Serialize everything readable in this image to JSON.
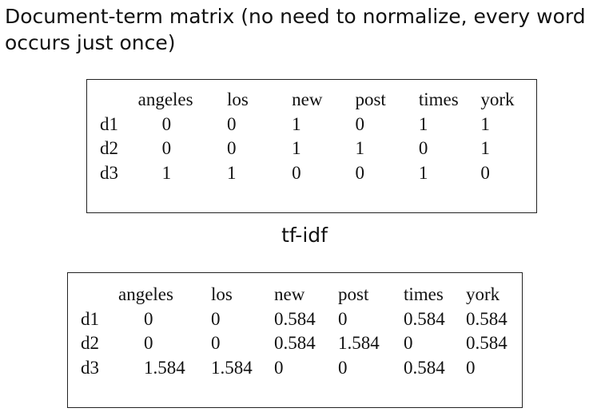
{
  "heading": "Document-term matrix (no need to normalize, every word occurs just once)",
  "tfidf_label": "tf-idf",
  "count_matrix": {
    "columns": [
      "angeles",
      "los",
      "new",
      "post",
      "times",
      "york"
    ],
    "rows": [
      {
        "doc": "d1",
        "values": [
          "0",
          "0",
          "1",
          "0",
          "1",
          "1"
        ]
      },
      {
        "doc": "d2",
        "values": [
          "0",
          "0",
          "1",
          "1",
          "0",
          "1"
        ]
      },
      {
        "doc": "d3",
        "values": [
          "1",
          "1",
          "0",
          "0",
          "1",
          "0"
        ]
      }
    ]
  },
  "tfidf_matrix": {
    "columns": [
      "angeles",
      "los",
      "new",
      "post",
      "times",
      "york"
    ],
    "rows": [
      {
        "doc": "d1",
        "values": [
          "0",
          "0",
          "0.584",
          "0",
          "0.584",
          "0.584"
        ]
      },
      {
        "doc": "d2",
        "values": [
          "0",
          "0",
          "0.584",
          "1.584",
          "0",
          "0.584"
        ]
      },
      {
        "doc": "d3",
        "values": [
          "1.584",
          "1.584",
          "0",
          "0",
          "0.584",
          "0"
        ]
      }
    ]
  }
}
